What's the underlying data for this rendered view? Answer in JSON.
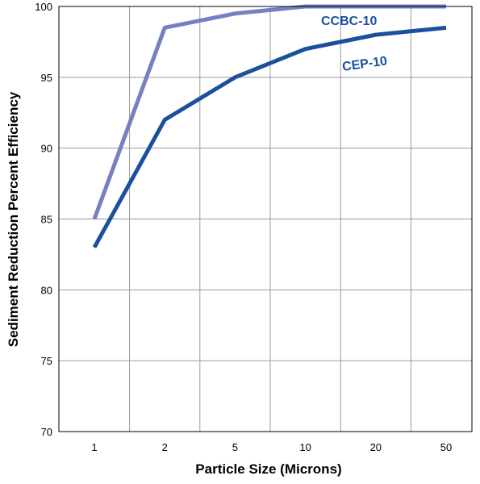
{
  "chart_data": {
    "type": "line",
    "categories": [
      "1",
      "2",
      "5",
      "10",
      "20",
      "50"
    ],
    "series": [
      {
        "name": "CCBC-10",
        "values": [
          85,
          98.5,
          99.5,
          100,
          100,
          100
        ],
        "color": "#7580c0"
      },
      {
        "name": "CEP-10",
        "values": [
          83,
          92,
          95,
          97,
          98,
          98.5
        ],
        "color": "#1c4f9c"
      }
    ],
    "xlabel": "Particle Size (Microns)",
    "ylabel": "Sediment Reduction Percent Efficiency",
    "ylim": [
      70,
      100
    ],
    "yticks": [
      70,
      75,
      80,
      85,
      90,
      95,
      100
    ],
    "grid": true,
    "legend": "inline labels near line ends"
  }
}
